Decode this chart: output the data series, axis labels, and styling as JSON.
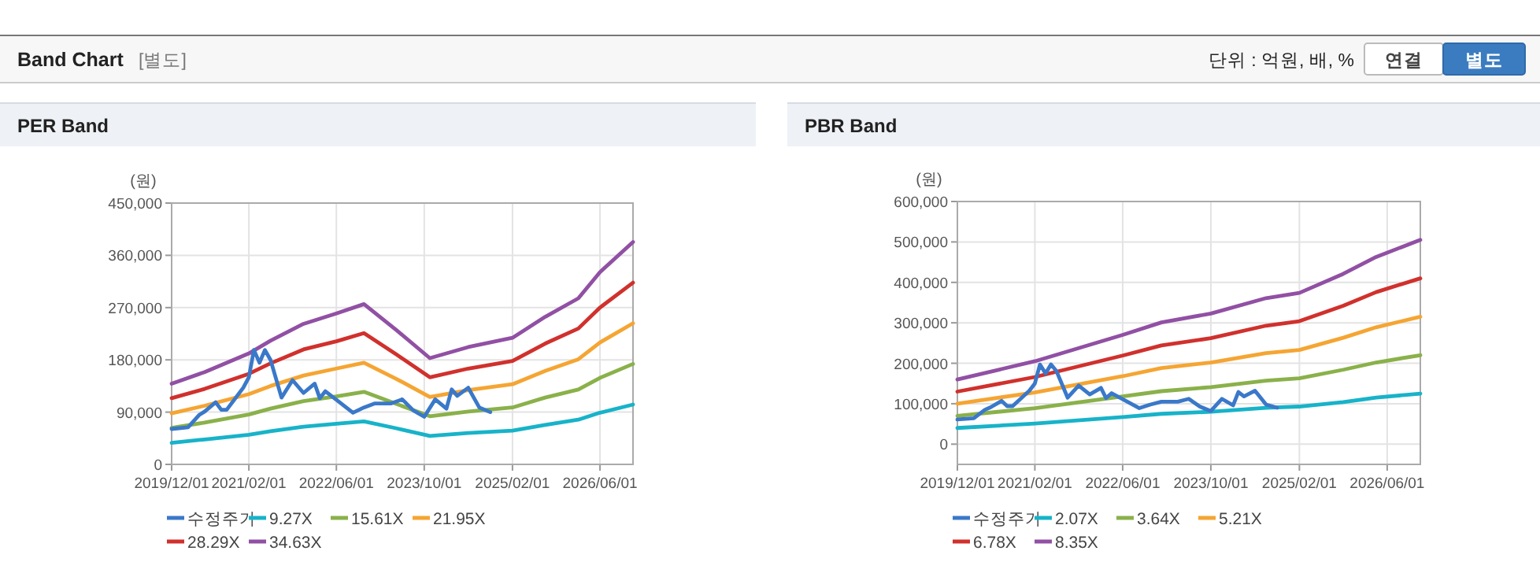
{
  "chart_data": [
    {
      "type": "line",
      "title": "PER Band",
      "ylabel": "(원)",
      "annotations": [
        "Band Chart",
        "[별도]",
        "단위 : 억원, 배, %",
        "연결",
        "별도"
      ],
      "xlim": [
        "2019-12",
        "2026-12"
      ],
      "xticks": [
        {
          "value": "2019-12-01",
          "label": "2019/12/01"
        },
        {
          "value": "2021-02-01",
          "label": "2021/02/01"
        },
        {
          "value": "2022-06-01",
          "label": "2022/06/01"
        },
        {
          "value": "2023-10-01",
          "label": "2023/10/01"
        },
        {
          "value": "2025-02-01",
          "label": "2025/02/01"
        },
        {
          "value": "2026-06-01",
          "label": "2026/06/01"
        }
      ],
      "ylim": [
        0,
        450000
      ],
      "yticks": [
        {
          "value": 0,
          "label": "0"
        },
        {
          "value": 90000,
          "label": "90,000"
        },
        {
          "value": 180000,
          "label": "180,000"
        },
        {
          "value": 270000,
          "label": "270,000"
        },
        {
          "value": 360000,
          "label": "360,000"
        },
        {
          "value": 450000,
          "label": "450,000"
        }
      ],
      "grid": true,
      "legend": "bottom",
      "marker": "none",
      "line_style": "solid",
      "series": [
        {
          "name": "수정주가",
          "color": "#3a78c9",
          "x": [
            "2019-12",
            "2020-03",
            "2020-05",
            "2020-06",
            "2020-08",
            "2020-09",
            "2020-10",
            "2021-01",
            "2021-02",
            "2021-03",
            "2021-04",
            "2021-05",
            "2021-06",
            "2021-08",
            "2021-10",
            "2021-12",
            "2022-02",
            "2022-03",
            "2022-04",
            "2022-09",
            "2022-11",
            "2023-01",
            "2023-04",
            "2023-06",
            "2023-08",
            "2023-10",
            "2023-12",
            "2024-02",
            "2024-03",
            "2024-04",
            "2024-06",
            "2024-08",
            "2024-10"
          ],
          "values": [
            61000,
            64000,
            85000,
            91000,
            107000,
            94000,
            94000,
            132000,
            150000,
            197000,
            175000,
            197000,
            180000,
            115000,
            145000,
            123000,
            139000,
            114000,
            126000,
            89000,
            98000,
            105000,
            105000,
            112000,
            93000,
            82000,
            112000,
            96000,
            129000,
            118000,
            132000,
            98000,
            90000
          ]
        },
        {
          "name": "9.27X",
          "color": "#17b3c9",
          "x": [
            "2019-12",
            "2020-06",
            "2021-02",
            "2021-06",
            "2021-12",
            "2022-06",
            "2022-11",
            "2023-05",
            "2023-11",
            "2024-06",
            "2025-02",
            "2025-08",
            "2026-02",
            "2026-06",
            "2026-12"
          ],
          "values": [
            37000,
            43000,
            51000,
            57000,
            65000,
            70000,
            74000,
            62000,
            49000,
            54000,
            58000,
            68000,
            77000,
            89000,
            103000
          ]
        },
        {
          "name": "15.61X",
          "color": "#8ab14a",
          "x": [
            "2019-12",
            "2020-06",
            "2021-02",
            "2021-06",
            "2021-12",
            "2022-06",
            "2022-11",
            "2023-05",
            "2023-11",
            "2024-06",
            "2025-02",
            "2025-08",
            "2026-02",
            "2026-06",
            "2026-12"
          ],
          "values": [
            63000,
            72000,
            86000,
            96000,
            109000,
            117000,
            125000,
            104000,
            83000,
            91000,
            98000,
            115000,
            129000,
            149000,
            173000
          ]
        },
        {
          "name": "21.95X",
          "color": "#f5a533",
          "x": [
            "2019-12",
            "2020-06",
            "2021-02",
            "2021-06",
            "2021-12",
            "2022-06",
            "2022-11",
            "2023-05",
            "2023-11",
            "2024-06",
            "2025-02",
            "2025-08",
            "2026-02",
            "2026-06",
            "2026-12"
          ],
          "values": [
            88000,
            101000,
            121000,
            135000,
            153000,
            165000,
            175000,
            147000,
            116000,
            128000,
            138000,
            161000,
            181000,
            210000,
            243000
          ]
        },
        {
          "name": "28.29X",
          "color": "#d0312d",
          "x": [
            "2019-12",
            "2020-06",
            "2021-02",
            "2021-06",
            "2021-12",
            "2022-06",
            "2022-11",
            "2023-05",
            "2023-11",
            "2024-06",
            "2025-02",
            "2025-08",
            "2026-02",
            "2026-06",
            "2026-12"
          ],
          "values": [
            114000,
            130000,
            156000,
            174000,
            198000,
            212000,
            226000,
            189000,
            150000,
            165000,
            178000,
            208000,
            234000,
            270000,
            313000
          ]
        },
        {
          "name": "34.63X",
          "color": "#9150a4",
          "x": [
            "2019-12",
            "2020-06",
            "2021-02",
            "2021-06",
            "2021-12",
            "2022-06",
            "2022-11",
            "2023-05",
            "2023-11",
            "2024-06",
            "2025-02",
            "2025-08",
            "2026-02",
            "2026-06",
            "2026-12"
          ],
          "values": [
            139000,
            159000,
            191000,
            213000,
            242000,
            260000,
            276000,
            231000,
            183000,
            202000,
            218000,
            254000,
            286000,
            331000,
            383000
          ]
        }
      ]
    },
    {
      "type": "line",
      "title": "PBR Band",
      "ylabel": "(원)",
      "xlim": [
        "2019-12",
        "2026-12"
      ],
      "xticks": [
        {
          "value": "2019-12-01",
          "label": "2019/12/01"
        },
        {
          "value": "2021-02-01",
          "label": "2021/02/01"
        },
        {
          "value": "2022-06-01",
          "label": "2022/06/01"
        },
        {
          "value": "2023-10-01",
          "label": "2023/10/01"
        },
        {
          "value": "2025-02-01",
          "label": "2025/02/01"
        },
        {
          "value": "2026-06-01",
          "label": "2026/06/01"
        }
      ],
      "ylim": [
        -50000,
        600000
      ],
      "yticks": [
        {
          "value": 0,
          "label": "0"
        },
        {
          "value": 100000,
          "label": "100,000"
        },
        {
          "value": 200000,
          "label": "200,000"
        },
        {
          "value": 300000,
          "label": "300,000"
        },
        {
          "value": 400000,
          "label": "400,000"
        },
        {
          "value": 500000,
          "label": "500,000"
        },
        {
          "value": 600000,
          "label": "600,000"
        }
      ],
      "grid": true,
      "legend": "bottom",
      "marker": "none",
      "line_style": "solid",
      "series": [
        {
          "name": "수정주가",
          "color": "#3a78c9",
          "x": [
            "2019-12",
            "2020-03",
            "2020-05",
            "2020-06",
            "2020-08",
            "2020-09",
            "2020-10",
            "2021-01",
            "2021-02",
            "2021-03",
            "2021-04",
            "2021-05",
            "2021-06",
            "2021-08",
            "2021-10",
            "2021-12",
            "2022-02",
            "2022-03",
            "2022-04",
            "2022-09",
            "2022-11",
            "2023-01",
            "2023-04",
            "2023-06",
            "2023-08",
            "2023-10",
            "2023-12",
            "2024-02",
            "2024-03",
            "2024-04",
            "2024-06",
            "2024-08",
            "2024-10"
          ],
          "values": [
            61000,
            64000,
            85000,
            91000,
            107000,
            94000,
            94000,
            132000,
            150000,
            197000,
            175000,
            197000,
            180000,
            115000,
            145000,
            123000,
            139000,
            114000,
            126000,
            89000,
            98000,
            105000,
            105000,
            112000,
            93000,
            82000,
            112000,
            96000,
            129000,
            118000,
            132000,
            98000,
            90000
          ]
        },
        {
          "name": "2.07X",
          "color": "#17b3c9",
          "x": [
            "2019-12",
            "2021-02",
            "2022-06",
            "2023-01",
            "2023-10",
            "2024-08",
            "2025-02",
            "2025-10",
            "2026-04",
            "2026-12"
          ],
          "values": [
            40000,
            51000,
            67000,
            75000,
            80000,
            90000,
            93000,
            104000,
            115000,
            125000
          ]
        },
        {
          "name": "3.64X",
          "color": "#8ab14a",
          "x": [
            "2019-12",
            "2021-02",
            "2022-06",
            "2023-01",
            "2023-10",
            "2024-08",
            "2025-02",
            "2025-10",
            "2026-04",
            "2026-12"
          ],
          "values": [
            70000,
            89000,
            118000,
            131000,
            141000,
            157000,
            163000,
            184000,
            202000,
            220000
          ]
        },
        {
          "name": "5.21X",
          "color": "#f5a533",
          "x": [
            "2019-12",
            "2021-02",
            "2022-06",
            "2023-01",
            "2023-10",
            "2024-08",
            "2025-02",
            "2025-10",
            "2026-04",
            "2026-12"
          ],
          "values": [
            100000,
            128000,
            168000,
            188000,
            202000,
            225000,
            233000,
            263000,
            289000,
            315000
          ]
        },
        {
          "name": "6.78X",
          "color": "#d0312d",
          "x": [
            "2019-12",
            "2021-02",
            "2022-06",
            "2023-01",
            "2023-10",
            "2024-08",
            "2025-02",
            "2025-10",
            "2026-04",
            "2026-12"
          ],
          "values": [
            130000,
            166000,
            219000,
            244000,
            262000,
            293000,
            304000,
            342000,
            376000,
            410000
          ]
        },
        {
          "name": "8.35X",
          "color": "#9150a4",
          "x": [
            "2019-12",
            "2021-02",
            "2022-06",
            "2023-01",
            "2023-10",
            "2024-08",
            "2025-02",
            "2025-10",
            "2026-04",
            "2026-12"
          ],
          "values": [
            160000,
            205000,
            270000,
            301000,
            323000,
            361000,
            374000,
            421000,
            463000,
            505000
          ]
        }
      ]
    }
  ]
}
